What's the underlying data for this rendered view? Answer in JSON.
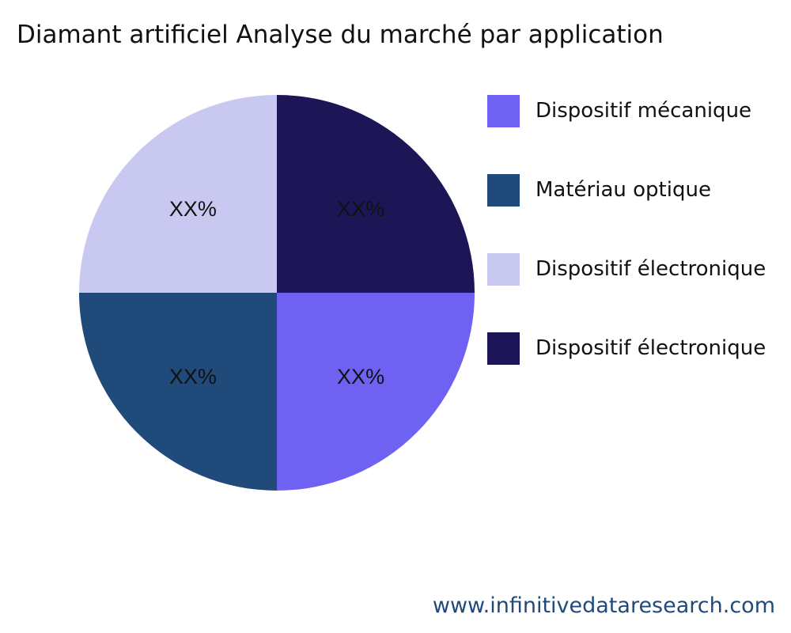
{
  "chart_data": {
    "type": "pie",
    "title": "Diamant artificiel Analyse du marché par application",
    "categories": [
      "Dispositif mécanique",
      "Matériau optique",
      "Dispositif électronique",
      "Dispositif électronique"
    ],
    "values": [
      25,
      25,
      25,
      25
    ],
    "data_labels": [
      "XX%",
      "XX%",
      "XX%",
      "XX%"
    ],
    "colors": [
      "#6f61f2",
      "#1f4a7a",
      "#c8c8f0",
      "#1c1656"
    ],
    "direction": "clockwise",
    "legend_position": "right"
  },
  "footer": "www.infinitivedataresearch.com"
}
